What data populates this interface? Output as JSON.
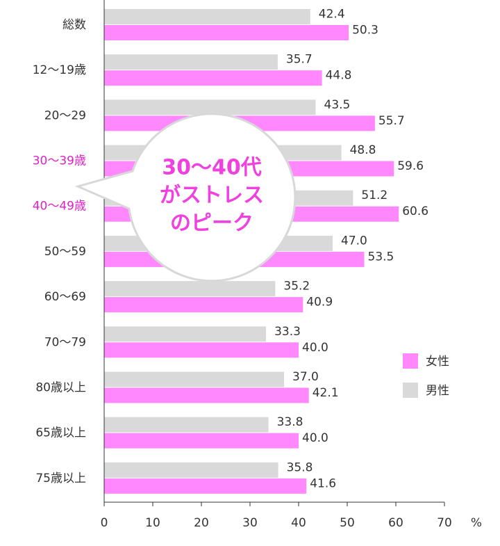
{
  "chart_data": {
    "type": "bar",
    "orientation": "horizontal",
    "categories": [
      "総数",
      "12〜19歳",
      "20〜29",
      "30〜39歳",
      "40〜49歳",
      "50〜59",
      "60〜69",
      "70〜79",
      "80歳以上",
      "65歳以上",
      "75歳以上"
    ],
    "category_label_colors": [
      "#333333",
      "#333333",
      "#333333",
      "#e020c8",
      "#e020c8",
      "#333333",
      "#333333",
      "#333333",
      "#333333",
      "#333333",
      "#333333"
    ],
    "series": [
      {
        "name": "男性",
        "color": "#d9d9d9",
        "values": [
          42.4,
          35.7,
          43.5,
          48.8,
          51.2,
          47.0,
          35.2,
          33.3,
          37.0,
          33.8,
          35.8
        ],
        "value_labels": [
          "42.4",
          "35.7",
          "43.5",
          "48.8",
          "51.2",
          "47.0",
          "35.2",
          "33.3",
          "37.0",
          "33.8",
          "35.8"
        ]
      },
      {
        "name": "女性",
        "color": "#ff88ff",
        "values": [
          50.3,
          44.8,
          55.7,
          59.6,
          60.6,
          53.5,
          40.9,
          40.0,
          42.1,
          40.0,
          41.6
        ],
        "value_labels": [
          "50.3",
          "44.8",
          "55.7",
          "59.6",
          "60.6",
          "53.5",
          "40.9",
          "40.0",
          "42.1",
          "40.0",
          "41.6"
        ]
      }
    ],
    "xlim": [
      0,
      70
    ],
    "xticks": [
      0,
      10,
      20,
      30,
      40,
      50,
      60,
      70
    ],
    "xlabel": "%",
    "annotation": [
      "30〜40代",
      "がストレス",
      "のピーク"
    ]
  }
}
